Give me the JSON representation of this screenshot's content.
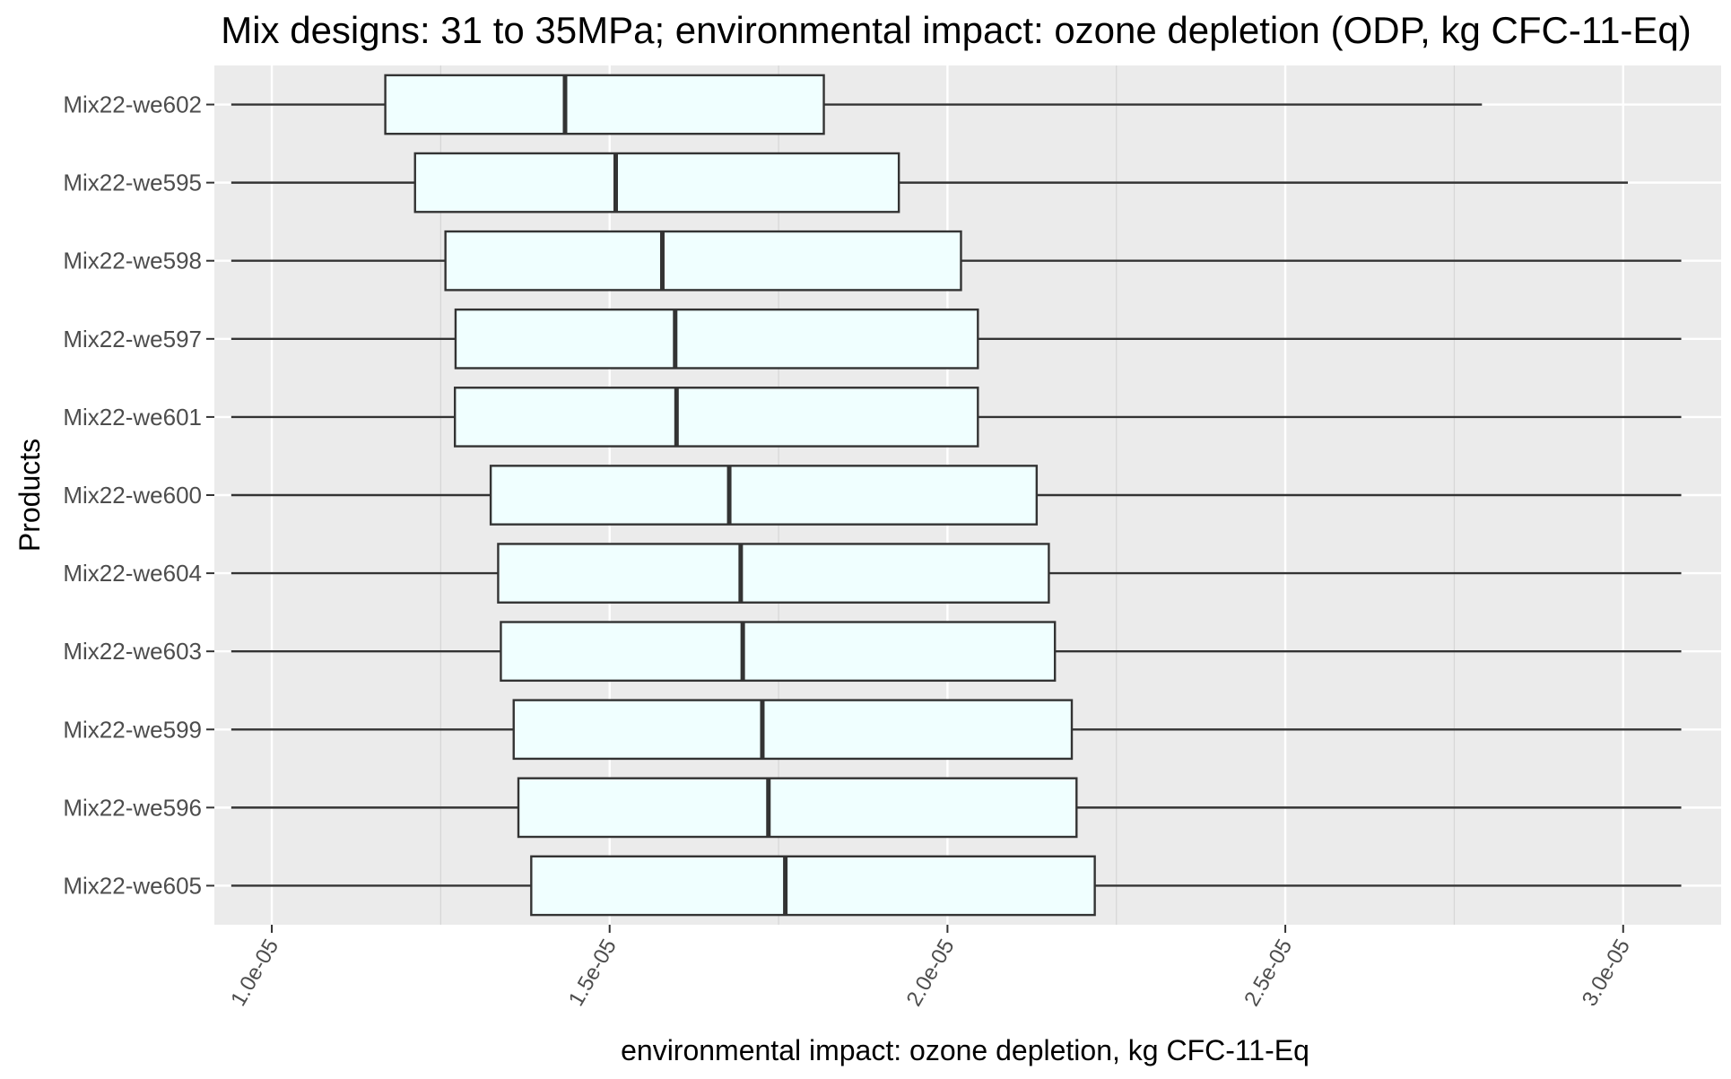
{
  "chart_data": {
    "type": "boxplot",
    "orientation": "horizontal",
    "title": "Mix designs: 31 to 35MPa; environmental impact: ozone depletion (ODP, kg CFC-11-Eq)",
    "xlabel": "environmental impact: ozone depletion, kg CFC-11-Eq",
    "ylabel": "Products",
    "xlim": [
      9.15e-06,
      3.145e-05
    ],
    "x_ticks": [
      1e-05,
      1.5e-05,
      2e-05,
      2.5e-05,
      3e-05
    ],
    "x_tick_labels": [
      "1.0e-05",
      "1.5e-05",
      "2.0e-05",
      "2.5e-05",
      "3.0e-05"
    ],
    "x_tick_rotation": "60",
    "grid": true,
    "colors": {
      "panel_background": "#ebebeb",
      "grid_major": "#ffffff",
      "grid_minor": "#d6d6d6",
      "box_fill": "#f0ffff",
      "box_stroke": "#333333"
    },
    "categories": [
      "Mix22-we602",
      "Mix22-we595",
      "Mix22-we598",
      "Mix22-we597",
      "Mix22-we601",
      "Mix22-we600",
      "Mix22-we604",
      "Mix22-we603",
      "Mix22-we599",
      "Mix22-we596",
      "Mix22-we605"
    ],
    "boxes": [
      {
        "label": "Mix22-we602",
        "min": 9.4e-06,
        "q1": 1.168e-05,
        "median": 1.434e-05,
        "q3": 1.817e-05,
        "max": 2.791e-05
      },
      {
        "label": "Mix22-we595",
        "min": 9.4e-06,
        "q1": 1.212e-05,
        "median": 1.509e-05,
        "q3": 1.928e-05,
        "max": 3.007e-05
      },
      {
        "label": "Mix22-we598",
        "min": 9.4e-06,
        "q1": 1.257e-05,
        "median": 1.578e-05,
        "q3": 2.02e-05,
        "max": 3.086e-05
      },
      {
        "label": "Mix22-we597",
        "min": 9.4e-06,
        "q1": 1.272e-05,
        "median": 1.597e-05,
        "q3": 2.045e-05,
        "max": 3.086e-05
      },
      {
        "label": "Mix22-we601",
        "min": 9.4e-06,
        "q1": 1.271e-05,
        "median": 1.599e-05,
        "q3": 2.045e-05,
        "max": 3.086e-05
      },
      {
        "label": "Mix22-we600",
        "min": 9.4e-06,
        "q1": 1.324e-05,
        "median": 1.677e-05,
        "q3": 2.132e-05,
        "max": 3.086e-05
      },
      {
        "label": "Mix22-we604",
        "min": 9.4e-06,
        "q1": 1.335e-05,
        "median": 1.694e-05,
        "q3": 2.15e-05,
        "max": 3.086e-05
      },
      {
        "label": "Mix22-we603",
        "min": 9.4e-06,
        "q1": 1.339e-05,
        "median": 1.697e-05,
        "q3": 2.159e-05,
        "max": 3.086e-05
      },
      {
        "label": "Mix22-we599",
        "min": 9.4e-06,
        "q1": 1.358e-05,
        "median": 1.726e-05,
        "q3": 2.184e-05,
        "max": 3.086e-05
      },
      {
        "label": "Mix22-we596",
        "min": 9.4e-06,
        "q1": 1.365e-05,
        "median": 1.735e-05,
        "q3": 2.191e-05,
        "max": 3.086e-05
      },
      {
        "label": "Mix22-we605",
        "min": 9.4e-06,
        "q1": 1.384e-05,
        "median": 1.76e-05,
        "q3": 2.218e-05,
        "max": 3.086e-05
      }
    ]
  }
}
